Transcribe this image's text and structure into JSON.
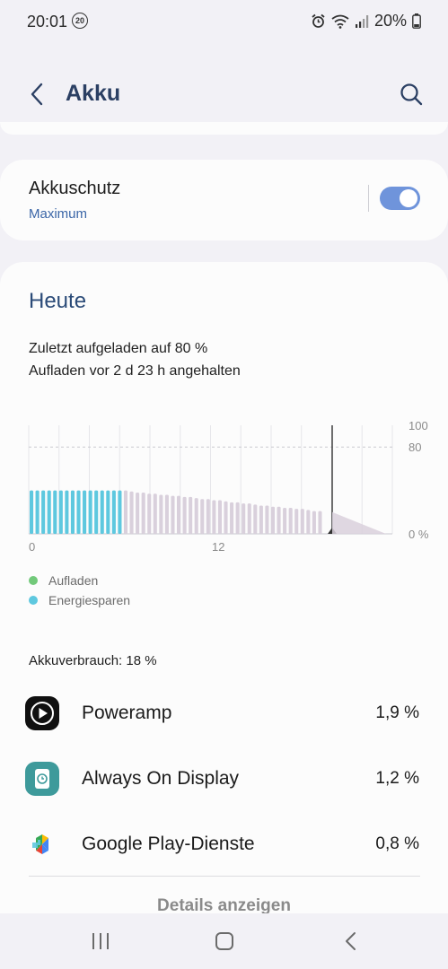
{
  "status_bar": {
    "time": "20:01",
    "notification_badge": "20",
    "battery_text": "20%",
    "icons": [
      "alarm-icon",
      "wifi-icon",
      "signal-icon",
      "battery-icon"
    ]
  },
  "header": {
    "title": "Akku",
    "back_icon": "back-arrow-icon",
    "search_icon": "search-icon"
  },
  "protection": {
    "title": "Akkuschutz",
    "mode": "Maximum",
    "toggle_on": true,
    "accent": "#6f94db"
  },
  "today": {
    "title": "Heute",
    "charged_line": "Zuletzt aufgeladen auf 80 %",
    "paused_line": "Aufladen vor 2 d 23 h angehalten"
  },
  "chart_data": {
    "type": "bar",
    "x_tick_labels": [
      "0",
      "12"
    ],
    "y_tick_labels": [
      "100",
      "80",
      "0 %"
    ],
    "ylim": [
      0,
      100
    ],
    "reference_line": 80,
    "bar_values": [
      40,
      40,
      40,
      40,
      40,
      40,
      40,
      40,
      40,
      40,
      40,
      40,
      40,
      40,
      40,
      40,
      40,
      39,
      38,
      38,
      37,
      37,
      36,
      36,
      35,
      35,
      34,
      34,
      33,
      32,
      32,
      31,
      31,
      30,
      29,
      29,
      28,
      28,
      27,
      26,
      26,
      25,
      25,
      24,
      24,
      23,
      23,
      22,
      21,
      21
    ],
    "highlighted_bars": 16,
    "colors": {
      "energy_saving": "#5ec8df",
      "normal": "#d9d0dc",
      "forecast": "#d9d0dc",
      "charging": "#72c97a"
    },
    "current_marker": true,
    "forecast_start": 20,
    "forecast_end": 0
  },
  "legend": [
    {
      "label": "Aufladen",
      "color": "#72c97a"
    },
    {
      "label": "Energiesparen",
      "color": "#5ec8df"
    }
  ],
  "usage": {
    "label": "Akkuverbrauch: 18 %",
    "apps": [
      {
        "name": "Poweramp",
        "percent": "1,9 %",
        "icon": "poweramp-icon"
      },
      {
        "name": "Always On Display",
        "percent": "1,2 %",
        "icon": "always-on-display-icon"
      },
      {
        "name": "Google Play-Dienste",
        "percent": "0,8 %",
        "icon": "google-play-services-icon"
      }
    ],
    "details_label": "Details anzeigen"
  },
  "navbar": {
    "icons": [
      "recent-apps-icon",
      "home-icon",
      "back-icon"
    ]
  }
}
